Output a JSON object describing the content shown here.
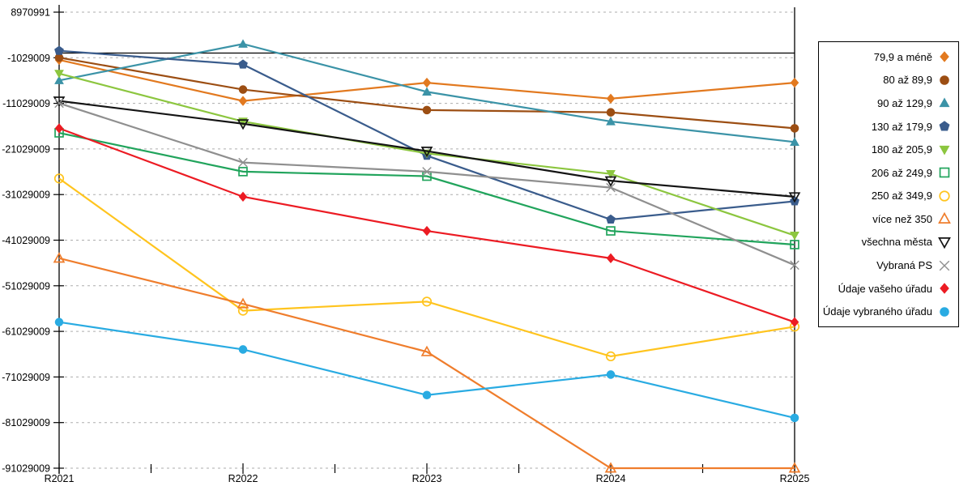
{
  "chart_data": {
    "type": "line",
    "title": "",
    "xlabel": "",
    "ylabel": "",
    "x_categories": [
      "R2021",
      "R2022",
      "R2023",
      "R2024",
      "R2025"
    ],
    "y_axis": {
      "max": 8970991,
      "min": -91029009,
      "tick_values": [
        8970991,
        -1029009,
        -11029009,
        -21029009,
        -31029009,
        -41029009,
        -51029009,
        -61029009,
        -71029009,
        -81029009,
        -91029009
      ],
      "tick_labels": [
        "8970991",
        "-1029009",
        "-11029009",
        "-21029009",
        "-31029009",
        "-41029009",
        "-51029009",
        "-61029009",
        "-71029009",
        "-81029009",
        "-91029009"
      ]
    },
    "grid": "horizontal-dashed",
    "grid_color": "#ADADAD",
    "zero_line": true,
    "zero_line_color": "#000000",
    "legend_position": "right",
    "series": [
      {
        "id": "79-9-a-mene",
        "name": "79,9 a méně",
        "color": "#E2791F",
        "marker": "diamond",
        "marker_style": "filled",
        "values": [
          -1500000,
          -10500000,
          -6500000,
          -10000000,
          -6500000
        ]
      },
      {
        "id": "80-az-89-9",
        "name": "80 až 89,9",
        "color": "#9C4E13",
        "marker": "circle",
        "marker_style": "filled",
        "values": [
          -1000000,
          -8000000,
          -12500000,
          -13000000,
          -16500000
        ]
      },
      {
        "id": "90-az-129-9",
        "name": "90 až 129,9",
        "color": "#3B93A7",
        "marker": "triangle-up",
        "marker_style": "filled",
        "values": [
          -6000000,
          2000000,
          -8500000,
          -15000000,
          -19500000
        ]
      },
      {
        "id": "130-az-179-9",
        "name": "130 až 179,9",
        "color": "#3A5C8C",
        "marker": "pentagon",
        "marker_style": "filled",
        "values": [
          500000,
          -2500000,
          -22500000,
          -36500000,
          -32500000
        ]
      },
      {
        "id": "180-az-205-9",
        "name": "180 až 205,9",
        "color": "#8CC63F",
        "marker": "triangle-down",
        "marker_style": "filled",
        "values": [
          -4500000,
          -15000000,
          -22000000,
          -26500000,
          -40000000
        ]
      },
      {
        "id": "206-az-249-9",
        "name": "206 až 249,9",
        "color": "#21A45C",
        "marker": "square",
        "marker_style": "open",
        "values": [
          -17500000,
          -26000000,
          -27000000,
          -39000000,
          -42000000
        ]
      },
      {
        "id": "250-az-349-9",
        "name": "250 až 349,9",
        "color": "#FFC41E",
        "marker": "circle",
        "marker_style": "open",
        "values": [
          -27500000,
          -56500000,
          -54500000,
          -66500000,
          -60000000
        ]
      },
      {
        "id": "vice-nez-350",
        "name": "více než 350",
        "color": "#EF7D2C",
        "marker": "triangle-up",
        "marker_style": "open",
        "values": [
          -45000000,
          -55000000,
          -65500000,
          -91029009,
          -91029009
        ]
      },
      {
        "id": "vsechna-mesta",
        "name": "všechna města",
        "color": "#141414",
        "marker": "triangle-down",
        "marker_style": "open",
        "values": [
          -10500000,
          -15500000,
          -21500000,
          -28000000,
          -31500000
        ]
      },
      {
        "id": "vybrana-ps",
        "name": "Vybraná PS",
        "color": "#8F8F8F",
        "marker": "x",
        "marker_style": "stroke",
        "values": [
          -11000000,
          -24000000,
          -26000000,
          -29500000,
          -46500000
        ]
      },
      {
        "id": "udaje-vaseho-uradu",
        "name": "Údaje vašeho úřadu",
        "color": "#EC1B23",
        "marker": "diamond",
        "marker_style": "filled",
        "values": [
          -16500000,
          -31500000,
          -39000000,
          -45000000,
          -59000000
        ]
      },
      {
        "id": "udaje-vybraneho-uradu",
        "name": "Údaje vybraného úřadu",
        "color": "#29ABE2",
        "marker": "circle",
        "marker_style": "filled",
        "values": [
          -59000000,
          -65000000,
          -75000000,
          -70500000,
          -80000000
        ]
      }
    ]
  }
}
